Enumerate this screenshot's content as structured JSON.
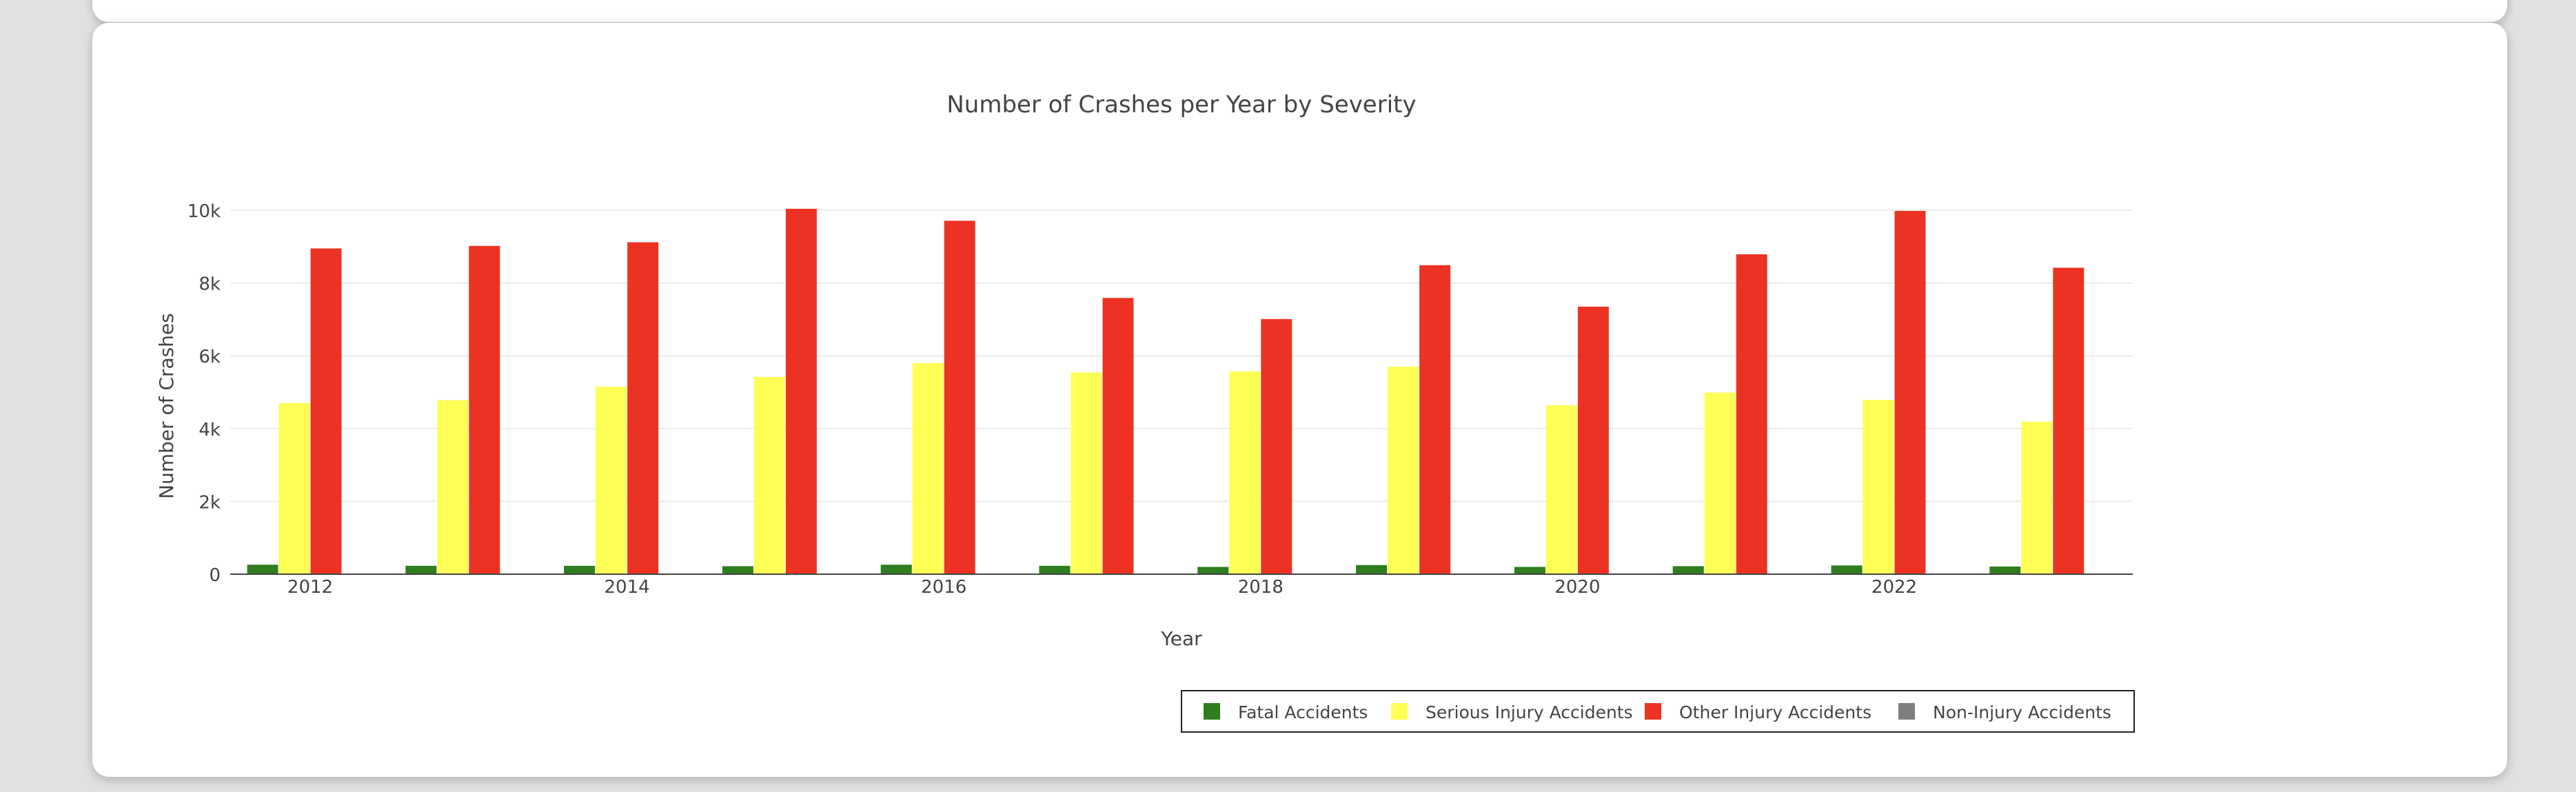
{
  "chart_data": {
    "type": "bar",
    "title": "Number of Crashes per Year by Severity",
    "xlabel": "Year",
    "ylabel": "Number of Crashes",
    "categories": [
      2012,
      2013,
      2014,
      2015,
      2016,
      2017,
      2018,
      2019,
      2020,
      2021,
      2022,
      2023
    ],
    "x_tick_labels": [
      "2012",
      "2014",
      "2016",
      "2018",
      "2020",
      "2022"
    ],
    "y_ticks": [
      0,
      2000,
      4000,
      6000,
      8000,
      10000
    ],
    "y_tick_labels": [
      "0",
      "2k",
      "4k",
      "6k",
      "8k",
      "10k"
    ],
    "ylim": [
      0,
      10000
    ],
    "grid": true,
    "legend_position": "bottom-right",
    "series": [
      {
        "name": "Fatal Accidents",
        "color": "#2e7d1e",
        "values": [
          260,
          230,
          230,
          220,
          260,
          230,
          200,
          250,
          200,
          220,
          240,
          210
        ]
      },
      {
        "name": "Serious Injury Accidents",
        "color": "#ffff55",
        "values": [
          4700,
          4780,
          5150,
          5420,
          5800,
          5540,
          5570,
          5700,
          4640,
          4990,
          4790,
          4190
        ]
      },
      {
        "name": "Other Injury Accidents",
        "color": "#ec3323",
        "values": [
          8950,
          9020,
          9120,
          10040,
          9710,
          7590,
          7010,
          8490,
          7350,
          8790,
          9980,
          8420
        ]
      },
      {
        "name": "Non-Injury Accidents",
        "color": "#7f7f7f",
        "values": [
          0,
          0,
          0,
          0,
          0,
          0,
          0,
          0,
          0,
          0,
          0,
          0
        ]
      }
    ]
  }
}
